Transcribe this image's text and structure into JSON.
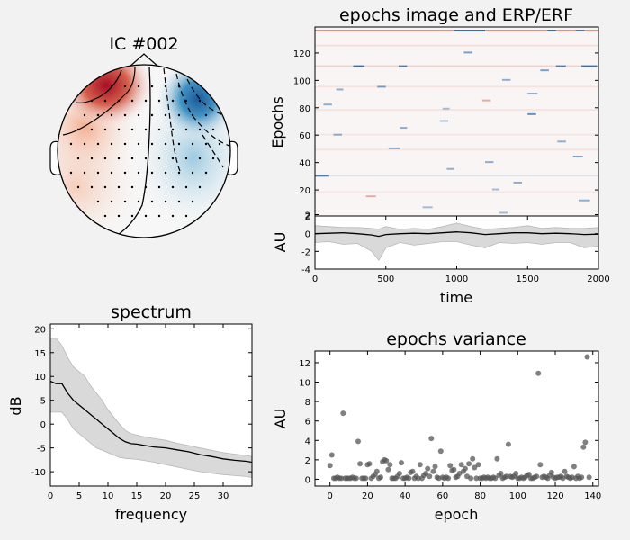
{
  "figure": {
    "background": "#f2f2f2"
  },
  "chart_data": [
    {
      "type": "heatmap",
      "subtype": "topomap",
      "title": "IC #002",
      "colormap": "RdBu_r",
      "colors": {
        "negative": "#1f5f9f",
        "positive": "#b2182b"
      }
    },
    {
      "type": "heatmap",
      "title": "epochs image and ERP/ERF",
      "ylabel": "Epochs",
      "ylim": [
        1,
        139
      ],
      "yticks": [
        2,
        20,
        40,
        60,
        80,
        100,
        120
      ],
      "xlim": [
        0,
        2000
      ],
      "colormap": "RdBu_r",
      "n_epochs": 139,
      "highlighted_rows": [
        {
          "epoch": 136,
          "start": 0,
          "end": 2000,
          "sign": "positive",
          "strength": 0.75
        },
        {
          "epoch": 110,
          "start": 0,
          "end": 2000,
          "sign": "positive",
          "strength": 0.25
        },
        {
          "epoch": 125,
          "start": 0,
          "end": 2000,
          "sign": "positive",
          "strength": 0.15
        },
        {
          "epoch": 78,
          "start": 0,
          "end": 2000,
          "sign": "positive",
          "strength": 0.12
        },
        {
          "epoch": 95,
          "start": 0,
          "end": 2000,
          "sign": "positive",
          "strength": 0.12
        },
        {
          "epoch": 49,
          "start": 0,
          "end": 2000,
          "sign": "positive",
          "strength": 0.12
        },
        {
          "epoch": 60,
          "start": 0,
          "end": 2000,
          "sign": "positive",
          "strength": 0.1
        },
        {
          "epoch": 30,
          "start": 0,
          "end": 2000,
          "sign": "negative",
          "strength": 0.12
        },
        {
          "epoch": 18,
          "start": 0,
          "end": 2000,
          "sign": "positive",
          "strength": 0.1
        }
      ],
      "blips": [
        {
          "epoch": 136,
          "start": 980,
          "end": 1200,
          "sign": "negative",
          "strength": 0.9
        },
        {
          "epoch": 136,
          "start": 1640,
          "end": 1700,
          "sign": "negative",
          "strength": 0.9
        },
        {
          "epoch": 136,
          "start": 1840,
          "end": 1900,
          "sign": "negative",
          "strength": 0.7
        },
        {
          "epoch": 120,
          "start": 1050,
          "end": 1110,
          "sign": "negative",
          "strength": 0.6
        },
        {
          "epoch": 110,
          "start": 270,
          "end": 350,
          "sign": "negative",
          "strength": 0.9
        },
        {
          "epoch": 110,
          "start": 590,
          "end": 650,
          "sign": "negative",
          "strength": 0.8
        },
        {
          "epoch": 110,
          "start": 1700,
          "end": 1770,
          "sign": "negative",
          "strength": 0.8
        },
        {
          "epoch": 110,
          "start": 1880,
          "end": 1990,
          "sign": "negative",
          "strength": 0.9
        },
        {
          "epoch": 107,
          "start": 1590,
          "end": 1650,
          "sign": "negative",
          "strength": 0.6
        },
        {
          "epoch": 100,
          "start": 1320,
          "end": 1380,
          "sign": "negative",
          "strength": 0.5
        },
        {
          "epoch": 95,
          "start": 440,
          "end": 500,
          "sign": "negative",
          "strength": 0.6
        },
        {
          "epoch": 93,
          "start": 150,
          "end": 200,
          "sign": "negative",
          "strength": 0.5
        },
        {
          "epoch": 90,
          "start": 1500,
          "end": 1570,
          "sign": "negative",
          "strength": 0.5
        },
        {
          "epoch": 82,
          "start": 60,
          "end": 120,
          "sign": "negative",
          "strength": 0.5
        },
        {
          "epoch": 79,
          "start": 900,
          "end": 950,
          "sign": "negative",
          "strength": 0.4
        },
        {
          "epoch": 75,
          "start": 1500,
          "end": 1560,
          "sign": "negative",
          "strength": 0.7
        },
        {
          "epoch": 70,
          "start": 880,
          "end": 940,
          "sign": "negative",
          "strength": 0.4
        },
        {
          "epoch": 65,
          "start": 600,
          "end": 650,
          "sign": "negative",
          "strength": 0.5
        },
        {
          "epoch": 60,
          "start": 130,
          "end": 190,
          "sign": "negative",
          "strength": 0.5
        },
        {
          "epoch": 55,
          "start": 1710,
          "end": 1770,
          "sign": "negative",
          "strength": 0.5
        },
        {
          "epoch": 50,
          "start": 520,
          "end": 600,
          "sign": "negative",
          "strength": 0.5
        },
        {
          "epoch": 44,
          "start": 1820,
          "end": 1890,
          "sign": "negative",
          "strength": 0.6
        },
        {
          "epoch": 40,
          "start": 1200,
          "end": 1260,
          "sign": "negative",
          "strength": 0.5
        },
        {
          "epoch": 35,
          "start": 930,
          "end": 980,
          "sign": "negative",
          "strength": 0.5
        },
        {
          "epoch": 30,
          "start": 0,
          "end": 100,
          "sign": "negative",
          "strength": 0.8
        },
        {
          "epoch": 25,
          "start": 1400,
          "end": 1460,
          "sign": "negative",
          "strength": 0.5
        },
        {
          "epoch": 20,
          "start": 1250,
          "end": 1300,
          "sign": "negative",
          "strength": 0.4
        },
        {
          "epoch": 12,
          "start": 1860,
          "end": 1940,
          "sign": "negative",
          "strength": 0.5
        },
        {
          "epoch": 7,
          "start": 760,
          "end": 830,
          "sign": "negative",
          "strength": 0.4
        },
        {
          "epoch": 3,
          "start": 1300,
          "end": 1360,
          "sign": "negative",
          "strength": 0.4
        },
        {
          "epoch": 85,
          "start": 1180,
          "end": 1240,
          "sign": "positive",
          "strength": 0.5
        },
        {
          "epoch": 15,
          "start": 360,
          "end": 430,
          "sign": "positive",
          "strength": 0.5
        }
      ]
    },
    {
      "type": "area",
      "xlabel": "time",
      "ylabel": "AU",
      "xlim": [
        0,
        2000
      ],
      "ylim": [
        -4,
        2
      ],
      "xticks": [
        0,
        500,
        1000,
        1500,
        2000
      ],
      "yticks": [
        -4,
        -2,
        0,
        2
      ],
      "colors": {
        "line": "#000000",
        "band": "#d9d9d9"
      },
      "series": [
        {
          "name": "mean",
          "x": [
            0,
            100,
            200,
            300,
            400,
            450,
            500,
            600,
            700,
            800,
            900,
            1000,
            1100,
            1200,
            1300,
            1400,
            1500,
            1600,
            1700,
            1800,
            1900,
            2000
          ],
          "y": [
            0.0,
            0.05,
            0.1,
            0.0,
            -0.15,
            -0.3,
            -0.1,
            0.0,
            0.05,
            0.0,
            0.1,
            0.2,
            0.1,
            -0.1,
            0.0,
            0.1,
            0.1,
            0.0,
            0.05,
            0.0,
            -0.1,
            -0.05
          ]
        },
        {
          "name": "upper",
          "x": [
            0,
            100,
            200,
            300,
            400,
            450,
            500,
            600,
            700,
            800,
            900,
            1000,
            1100,
            1200,
            1300,
            1400,
            1500,
            1600,
            1700,
            1800,
            1900,
            2000
          ],
          "y": [
            0.9,
            0.8,
            0.7,
            0.7,
            0.6,
            0.5,
            0.8,
            0.5,
            0.6,
            0.5,
            0.8,
            1.2,
            0.8,
            0.5,
            0.6,
            0.7,
            0.9,
            0.6,
            0.7,
            0.6,
            0.6,
            0.7
          ]
        },
        {
          "name": "lower",
          "x": [
            0,
            100,
            200,
            300,
            400,
            450,
            500,
            600,
            700,
            800,
            900,
            1000,
            1100,
            1200,
            1300,
            1400,
            1500,
            1600,
            1700,
            1800,
            1900,
            2000
          ],
          "y": [
            -1.0,
            -0.9,
            -1.2,
            -1.1,
            -2.0,
            -3.0,
            -1.6,
            -1.0,
            -1.3,
            -1.1,
            -0.9,
            -0.9,
            -1.3,
            -1.6,
            -1.0,
            -1.1,
            -1.0,
            -1.2,
            -1.0,
            -1.0,
            -1.6,
            -1.4
          ]
        }
      ]
    },
    {
      "type": "area",
      "title": "spectrum",
      "xlabel": "frequency",
      "ylabel": "dB",
      "xlim": [
        0,
        35
      ],
      "ylim": [
        -13,
        21
      ],
      "xticks": [
        0,
        5,
        10,
        15,
        20,
        25,
        30
      ],
      "yticks": [
        -10,
        -5,
        0,
        5,
        10,
        15,
        20
      ],
      "colors": {
        "line": "#000000",
        "band": "#d9d9d9"
      },
      "series": [
        {
          "name": "mean",
          "x": [
            0,
            1,
            2,
            3,
            4,
            5,
            6,
            7,
            8,
            9,
            10,
            11,
            12,
            13,
            14,
            15,
            16,
            18,
            20,
            22,
            24,
            26,
            28,
            30,
            32,
            34,
            35
          ],
          "y": [
            9.0,
            8.5,
            8.5,
            6.5,
            5.0,
            4.0,
            3.0,
            2.0,
            1.0,
            0.0,
            -1.0,
            -2.0,
            -3.0,
            -3.7,
            -4.1,
            -4.2,
            -4.4,
            -4.8,
            -5.0,
            -5.4,
            -5.8,
            -6.4,
            -6.8,
            -7.3,
            -7.6,
            -7.8,
            -8.0
          ]
        },
        {
          "name": "upper",
          "x": [
            0,
            1,
            2,
            3,
            4,
            5,
            6,
            7,
            8,
            9,
            10,
            11,
            12,
            13,
            14,
            15,
            16,
            18,
            20,
            22,
            24,
            26,
            28,
            30,
            32,
            34,
            35
          ],
          "y": [
            18.0,
            18.0,
            16.5,
            14.0,
            12.0,
            11.0,
            10.0,
            8.0,
            6.5,
            5.0,
            3.0,
            1.5,
            0.0,
            -1.3,
            -2.0,
            -2.3,
            -2.6,
            -3.0,
            -3.4,
            -4.0,
            -4.5,
            -5.0,
            -5.5,
            -6.0,
            -6.3,
            -6.6,
            -6.8
          ]
        },
        {
          "name": "lower",
          "x": [
            0,
            1,
            2,
            3,
            4,
            5,
            6,
            7,
            8,
            9,
            10,
            11,
            12,
            13,
            14,
            15,
            16,
            18,
            20,
            22,
            24,
            26,
            28,
            30,
            32,
            34,
            35
          ],
          "y": [
            2.5,
            2.5,
            2.5,
            1.0,
            -1.0,
            -2.0,
            -3.0,
            -4.0,
            -5.0,
            -5.5,
            -6.0,
            -6.5,
            -7.0,
            -7.2,
            -7.3,
            -7.4,
            -7.6,
            -8.0,
            -8.5,
            -9.0,
            -9.5,
            -10.0,
            -10.3,
            -10.6,
            -10.8,
            -11.0,
            -11.2
          ]
        }
      ]
    },
    {
      "type": "scatter",
      "title": "epochs variance",
      "xlabel": "epoch",
      "ylabel": "AU",
      "xlim": [
        -8,
        143
      ],
      "ylim": [
        -0.7,
        13.2
      ],
      "xticks": [
        0,
        20,
        40,
        60,
        80,
        100,
        120,
        140
      ],
      "yticks": [
        0,
        2,
        4,
        6,
        8,
        10,
        12
      ],
      "colors": {
        "point": "#555555"
      },
      "values": [
        1.4,
        2.5,
        0.1,
        0.1,
        0.2,
        0.1,
        0.1,
        6.8,
        0.1,
        0.1,
        0.1,
        0.1,
        0.2,
        0.1,
        0.1,
        3.9,
        1.6,
        0.1,
        0.1,
        0.1,
        1.5,
        1.6,
        0.1,
        0.3,
        0.5,
        0.8,
        0.1,
        0.2,
        1.8,
        2.0,
        1.9,
        1.0,
        1.5,
        0.1,
        0.1,
        0.1,
        0.3,
        0.6,
        1.7,
        0.1,
        0.1,
        0.2,
        0.1,
        0.7,
        0.8,
        0.1,
        0.3,
        0.1,
        1.5,
        0.1,
        0.4,
        0.6,
        1.1,
        0.3,
        4.2,
        0.8,
        1.3,
        0.2,
        0.1,
        2.9,
        0.2,
        0.1,
        0.2,
        0.1,
        1.4,
        0.9,
        1.0,
        0.2,
        0.3,
        0.6,
        1.5,
        0.8,
        1.1,
        0.3,
        1.6,
        0.1,
        2.1,
        1.2,
        0.1,
        1.5,
        0.1,
        0.1,
        0.2,
        0.1,
        0.2,
        0.1,
        0.1,
        0.2,
        0.1,
        2.1,
        0.4,
        0.6,
        0.1,
        0.2,
        0.3,
        3.6,
        0.3,
        0.2,
        0.3,
        0.6,
        0.1,
        0.1,
        0.2,
        0.1,
        0.2,
        0.4,
        0.5,
        0.1,
        0.1,
        0.2,
        0.3,
        10.9,
        1.5,
        0.2,
        0.3,
        0.2,
        0.1,
        0.4,
        0.7,
        0.2,
        0.1,
        0.2,
        0.2,
        0.3,
        0.1,
        0.8,
        0.3,
        0.2,
        0.1,
        0.2,
        1.3,
        0.1,
        0.3,
        0.1,
        0.2,
        3.3,
        3.8,
        12.6,
        0.2
      ]
    }
  ]
}
